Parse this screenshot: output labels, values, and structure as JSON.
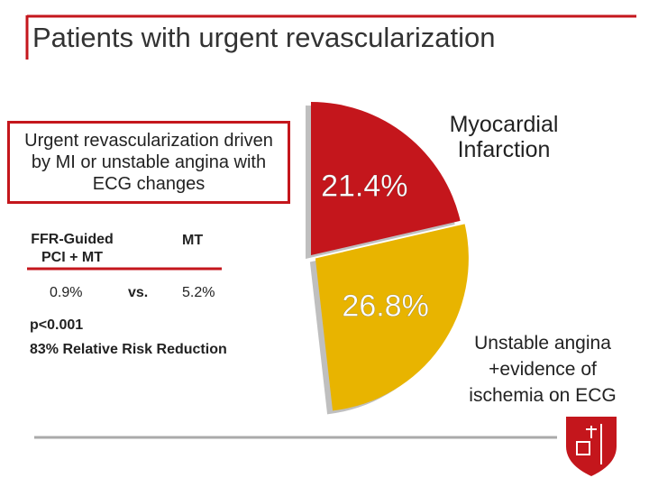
{
  "title": "Patients with urgent revascularization",
  "box_text": "Urgent revascularization driven by MI or unstable angina with ECG changes",
  "comparison": {
    "left_label": "FFR-Guided PCI + MT",
    "right_label": "MT",
    "left_value": "0.9%",
    "vs": "vs.",
    "right_value": "5.2%"
  },
  "stats": [
    "p<0.001",
    "83% Relative Risk Reduction"
  ],
  "chart_data": {
    "type": "pie",
    "categories": [
      "Myocardial Infarction",
      "Unstable angina +evidence of ischemia on ECG"
    ],
    "values": [
      21.4,
      26.8
    ],
    "value_labels": [
      "21.4%",
      "26.8%"
    ],
    "colors": [
      "#c4161c",
      "#e8b400"
    ]
  }
}
